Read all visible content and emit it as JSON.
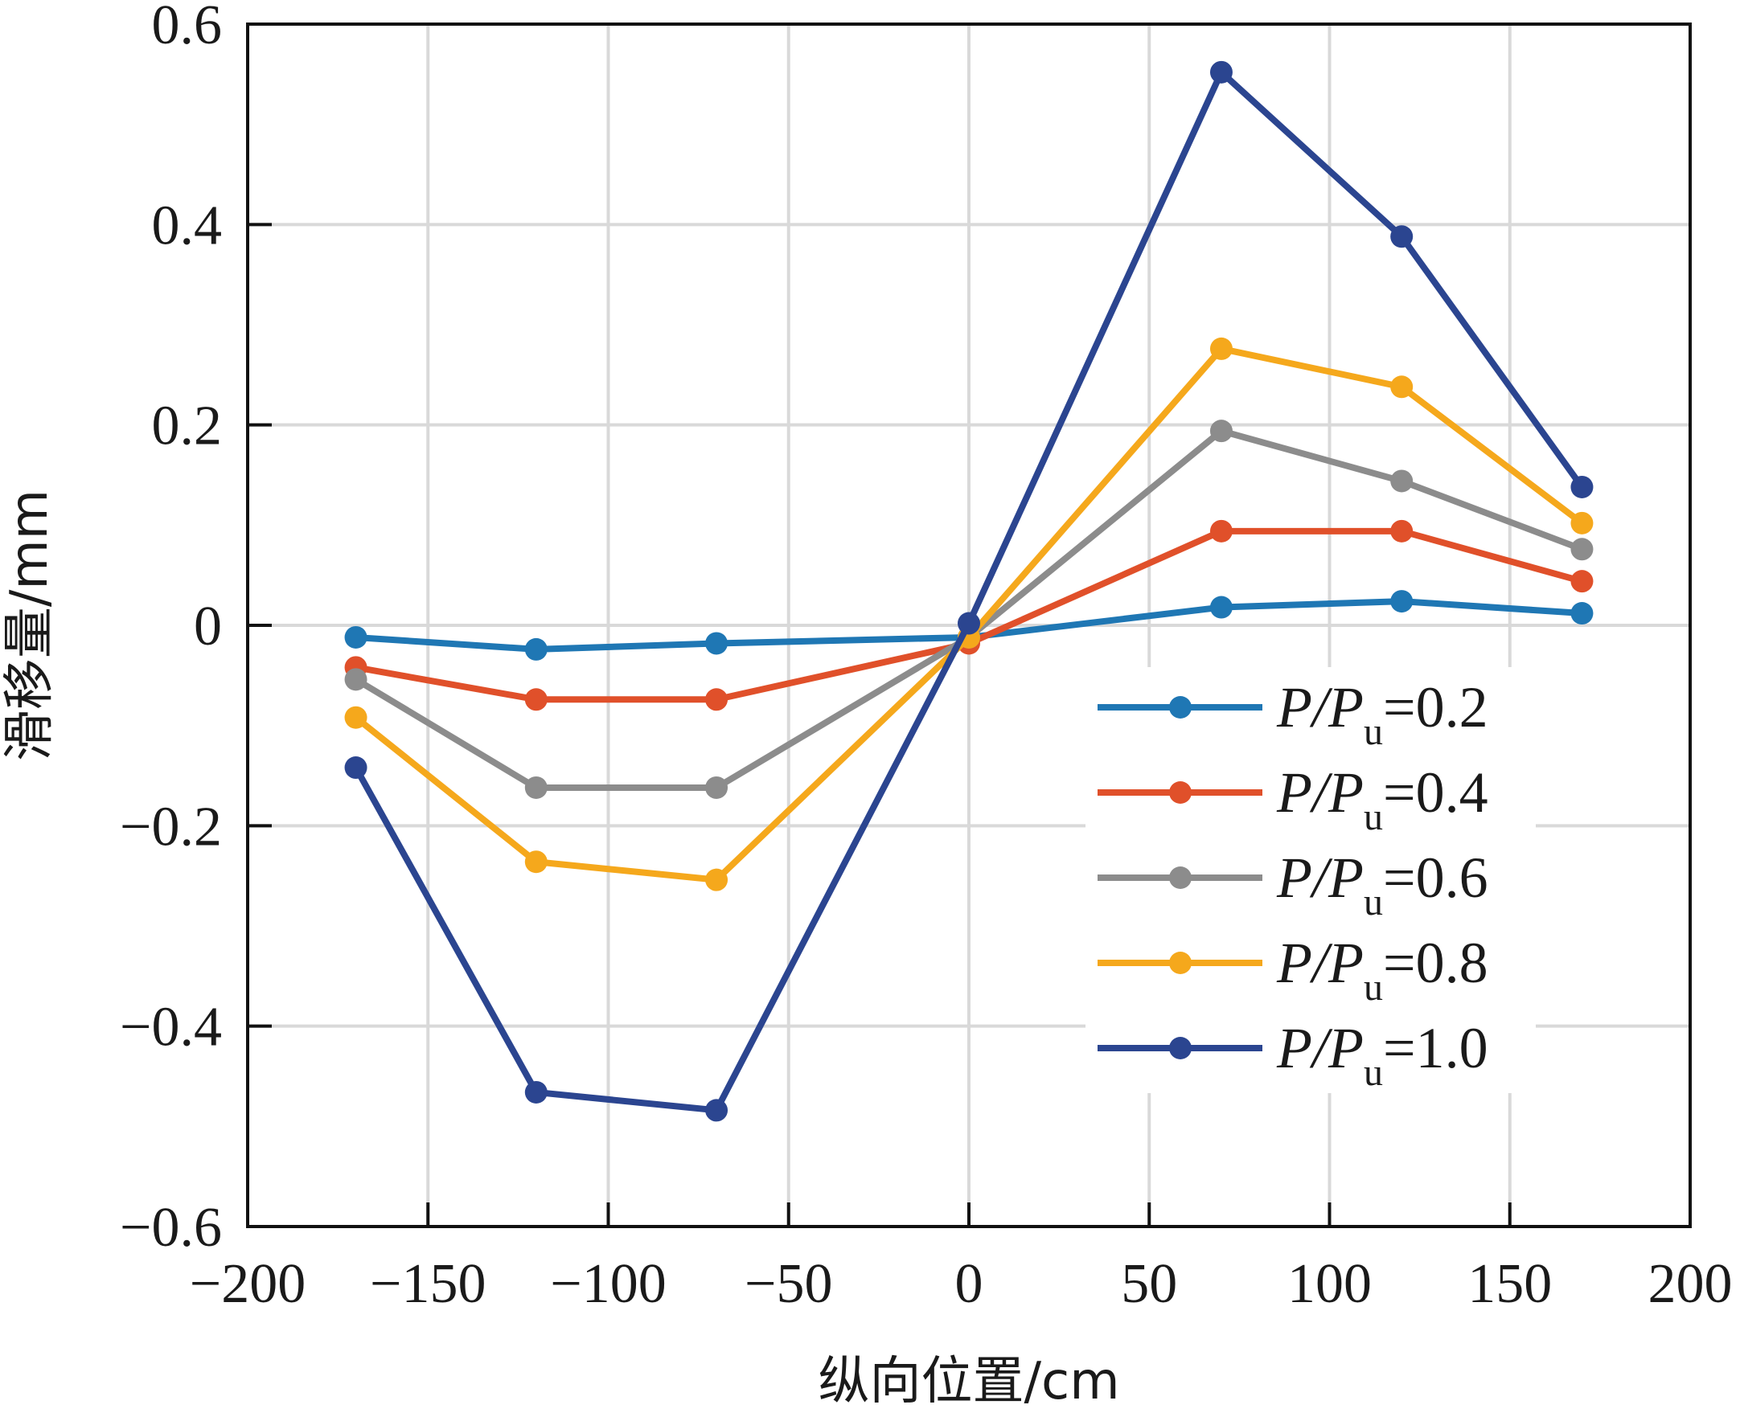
{
  "chart_data": {
    "type": "line",
    "title": "",
    "xlabel": "纵向位置/cm",
    "ylabel": "滑移量/mm",
    "xlim": [
      -200,
      200
    ],
    "ylim": [
      -0.6,
      0.6
    ],
    "xticks": [
      -200,
      -150,
      -100,
      -50,
      0,
      50,
      100,
      150,
      200
    ],
    "yticks": [
      -0.6,
      -0.4,
      -0.2,
      0,
      0.2,
      0.4,
      0.6
    ],
    "xtick_labels": [
      "−200",
      "−150",
      "−100",
      "−50",
      "0",
      "50",
      "100",
      "150",
      "200"
    ],
    "ytick_labels": [
      "−0.6",
      "−0.4",
      "−0.2",
      "0",
      "0.2",
      "0.4",
      "0.6"
    ],
    "grid": true,
    "legend_position": "lower-right",
    "x": [
      -170,
      -120,
      -70,
      0,
      70,
      120,
      170
    ],
    "series": [
      {
        "name": "P/Pu=0.2",
        "label_main": "P/P",
        "label_sub": "u",
        "label_value": "=0.2",
        "color": "#1f77b4",
        "values": [
          -0.012,
          -0.024,
          -0.018,
          -0.012,
          0.018,
          0.024,
          0.012
        ]
      },
      {
        "name": "P/Pu=0.4",
        "label_main": "P/P",
        "label_sub": "u",
        "label_value": "=0.4",
        "color": "#e0502a",
        "values": [
          -0.042,
          -0.074,
          -0.074,
          -0.018,
          0.094,
          0.094,
          0.044
        ]
      },
      {
        "name": "P/Pu=0.6",
        "label_main": "P/P",
        "label_sub": "u",
        "label_value": "=0.6",
        "color": "#8c8c8c",
        "values": [
          -0.054,
          -0.162,
          -0.162,
          -0.012,
          0.194,
          0.144,
          0.076
        ]
      },
      {
        "name": "P/Pu=0.8",
        "label_main": "P/P",
        "label_sub": "u",
        "label_value": "=0.8",
        "color": "#f5a81c",
        "values": [
          -0.092,
          -0.236,
          -0.254,
          -0.012,
          0.276,
          0.238,
          0.102
        ]
      },
      {
        "name": "P/Pu=1.0",
        "label_main": "P/P",
        "label_sub": "u",
        "label_value": "=1.0",
        "color": "#2b4590",
        "values": [
          -0.142,
          -0.466,
          -0.484,
          0.002,
          0.552,
          0.388,
          0.138
        ]
      }
    ]
  }
}
